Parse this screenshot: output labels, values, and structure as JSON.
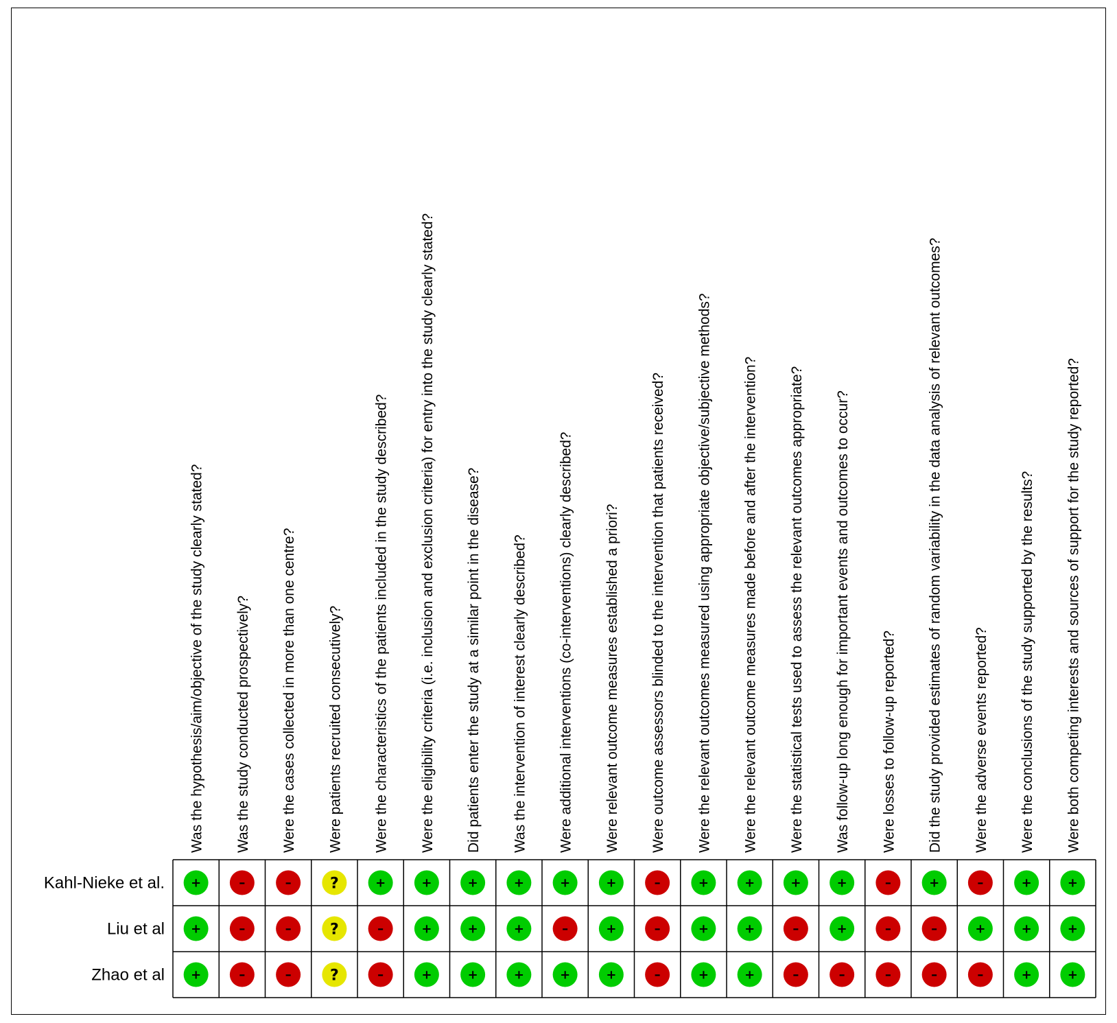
{
  "chart_data": {
    "type": "table",
    "title": "",
    "questions": [
      "Was the hypothesis/aim/objective of the study clearly stated?",
      "Was the study conducted prospectively?",
      "Were the cases collected in more than one centre?",
      "Were patients recruited consecutively?",
      "Were the characteristics of the patients included in the study described?",
      "Were the eligibility criteria (i.e. inclusion and exclusion criteria) for entry into the study clearly stated?",
      "Did patients enter the study at a similar point in the disease?",
      "Was the intervention of interest clearly described?",
      "Were additional interventions (co-interventions) clearly described?",
      "Were relevant outcome measures established a priori?",
      "Were outcome assessors blinded to the intervention that patients received?",
      "Were the relevant outcomes measured using appropriate objective/subjective methods?",
      "Were the relevant outcome measures made before and after the intervention?",
      "Were the statistical tests used to assess the relevant outcomes appropriate?",
      "Was follow-up long enough for important events and outcomes to occur?",
      "Were losses to follow-up reported?",
      "Did the study provided estimates of random variability in the data analysis of relevant outcomes?",
      "Were the adverse events reported?",
      "Were the conclusions of the study supported by the results?",
      "Were both competing interests and sources of support for the study reported?"
    ],
    "studies": [
      {
        "name": "Kahl-Nieke et al.",
        "ratings": [
          "+",
          "-",
          "-",
          "?",
          "+",
          "+",
          "+",
          "+",
          "+",
          "+",
          "-",
          "+",
          "+",
          "+",
          "+",
          "-",
          "+",
          "-",
          "+",
          "+"
        ]
      },
      {
        "name": "Liu et al",
        "ratings": [
          "+",
          "-",
          "-",
          "?",
          "-",
          "+",
          "+",
          "+",
          "-",
          "+",
          "-",
          "+",
          "+",
          "-",
          "+",
          "-",
          "-",
          "+",
          "+",
          "+"
        ]
      },
      {
        "name": "Zhao et al",
        "ratings": [
          "+",
          "-",
          "-",
          "?",
          "-",
          "+",
          "+",
          "+",
          "+",
          "+",
          "-",
          "+",
          "+",
          "-",
          "-",
          "-",
          "-",
          "-",
          "+",
          "+"
        ]
      }
    ],
    "legend": {
      "+": {
        "symbol": "+",
        "color": "#00cc00"
      },
      "-": {
        "symbol": "–",
        "color": "#cc0000"
      },
      "?": {
        "symbol": "?",
        "color": "#e6e600"
      }
    }
  }
}
